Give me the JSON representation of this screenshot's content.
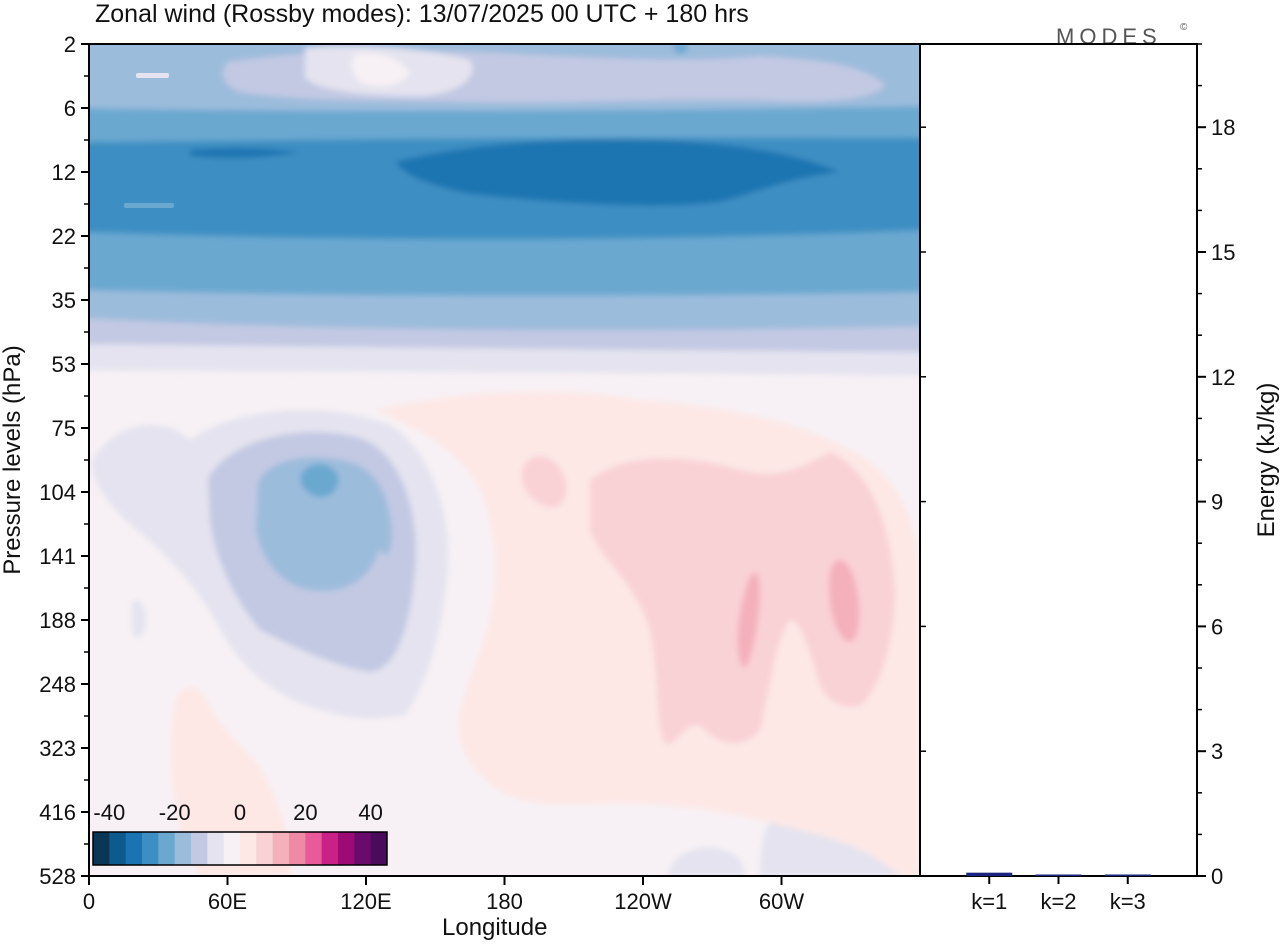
{
  "header": {
    "title": "Zonal wind (Rossby modes):  13/07/2025  00 UTC  + 180 hrs",
    "logo": "MODES",
    "logo_mark": "©"
  },
  "colors": {
    "background": "#ffffff",
    "frame": "#000000",
    "bar": "#1a237e",
    "scale": [
      "#0b3656",
      "#0d5a8c",
      "#1b74b1",
      "#3d8fc3",
      "#6aa8d0",
      "#9cbcdc",
      "#c3c9e3",
      "#e4e3ef",
      "#f7f1f5",
      "#fde8e6",
      "#f9d2d6",
      "#f4b0bb",
      "#ef8aa6",
      "#e85a9a",
      "#c92186",
      "#9c0a76",
      "#6a0a6c",
      "#4a0b5c"
    ]
  },
  "chart_data": [
    {
      "type": "heatmap",
      "title": "Zonal wind (Rossby modes):  13/07/2025  00 UTC  + 180 hrs",
      "xlabel": "Longitude",
      "ylabel": "Pressure levels (hPa)",
      "x_ticks": [
        "0",
        "60E",
        "120E",
        "180",
        "120W",
        "60W"
      ],
      "x_tick_values": [
        0,
        60,
        120,
        180,
        240,
        300
      ],
      "xlim": [
        0,
        360
      ],
      "y_ticks": [
        "2",
        "6",
        "12",
        "22",
        "35",
        "53",
        "75",
        "104",
        "141",
        "188",
        "248",
        "323",
        "416",
        "528"
      ],
      "y_scale": "levels",
      "colorbar": {
        "labels": [
          "-40",
          "-20",
          "0",
          "20",
          "40"
        ],
        "values": [
          -40,
          -20,
          0,
          20,
          40
        ],
        "range": [
          -45,
          45
        ]
      },
      "features": [
        {
          "level": "2",
          "lon": 130,
          "value": 0,
          "desc": "near-zero band in upper stratosphere"
        },
        {
          "level": "12",
          "lon": 210,
          "value": -30,
          "desc": "strong easterly jet maximum"
        },
        {
          "level": "22",
          "lon": 180,
          "value": -22,
          "desc": "easterly band"
        },
        {
          "level": "104",
          "lon": 100,
          "value": -15,
          "desc": "easterly cell over Asia"
        },
        {
          "level": "188",
          "lon": 290,
          "value": 10,
          "desc": "westerly maximum"
        },
        {
          "level": "188",
          "lon": 260,
          "value": 10,
          "desc": "westerly maximum"
        }
      ]
    },
    {
      "type": "bar",
      "ylabel": "Energy (kJ/kg)",
      "categories": [
        "k=1",
        "k=2",
        "k=3"
      ],
      "values": [
        0.08,
        0.03,
        0.02
      ],
      "ylim": [
        0,
        20
      ],
      "y_ticks": [
        "0",
        "3",
        "6",
        "9",
        "12",
        "15",
        "18"
      ],
      "y_tick_values": [
        0,
        3,
        6,
        9,
        12,
        15,
        18
      ]
    }
  ]
}
